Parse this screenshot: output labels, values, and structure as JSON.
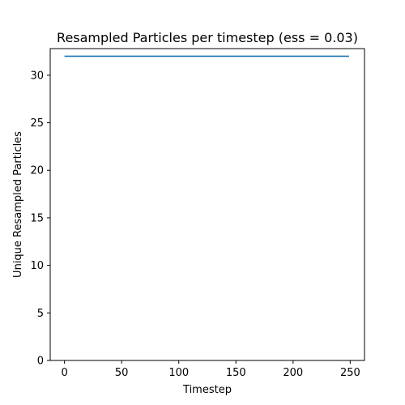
{
  "chart_data": {
    "type": "line",
    "title": "Resampled Particles per timestep (ess = 0.03)",
    "xlabel": "Timestep",
    "ylabel": "Unique Resampled Particles",
    "xlim": [
      -12.5,
      262.5
    ],
    "ylim": [
      0,
      32.8
    ],
    "xticks": [
      0,
      50,
      100,
      150,
      200,
      250
    ],
    "yticks": [
      0,
      5,
      10,
      15,
      20,
      25,
      30
    ],
    "grid": false,
    "series": [
      {
        "color": "#1f77b4",
        "x": [
          0,
          249
        ],
        "y": [
          32,
          32
        ]
      }
    ]
  }
}
